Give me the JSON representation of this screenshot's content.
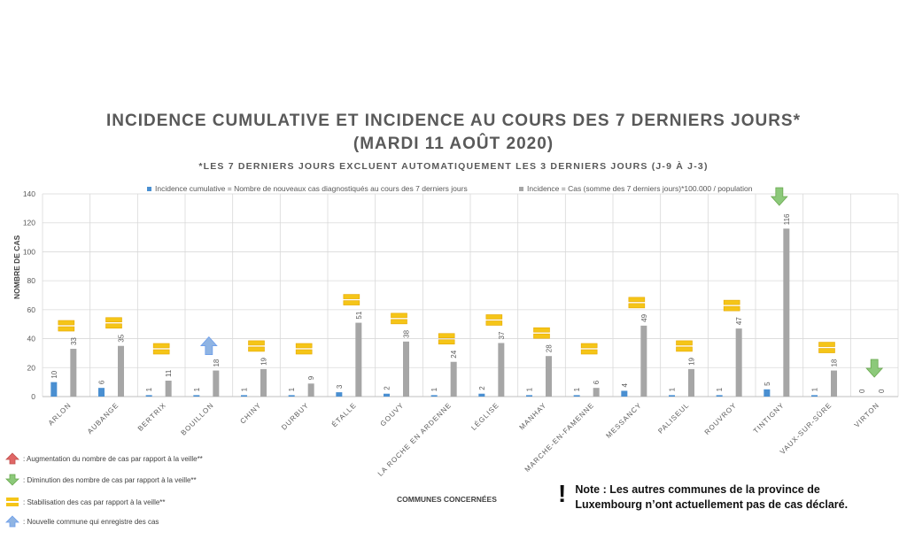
{
  "title_line1": "INCIDENCE CUMULATIVE ET INCIDENCE AU COURS DES 7 DERNIERS JOURS*",
  "title_line2": "(MARDI 11 AOÛT 2020)",
  "subtitle": "*LES 7 DERNIERS JOURS EXCLUENT AUTOMATIQUEMENT LES 3 DERNIERS JOURS (J-9 À J-3)",
  "legend": {
    "series1": "Incidence cumulative = Nombre de nouveaux cas diagnostiqués au cours des 7 derniers jours",
    "series2": "Incidence = Cas (somme des 7 derniers jours)*100.000 / population"
  },
  "axis": {
    "xlabel": "COMMUNES CONCERNÉES",
    "ylabel": "NOMBRE DE CAS"
  },
  "keys": [
    {
      "icon": "red-up-arrow-icon",
      "label": ": Augmentation du nombre de cas par rapport à la veille**"
    },
    {
      "icon": "green-down-arrow-icon",
      "label": ": Diminution des nombre de cas par rapport à la veille**"
    },
    {
      "icon": "yellow-bars-icon",
      "label": ": Stabilisation des cas par rapport à la veille**"
    },
    {
      "icon": "blue-up-arrow-icon",
      "label": ": Nouvelle commune qui enregistre des cas"
    }
  ],
  "note": "Note : Les autres communes de la province de Luxembourg n’ont actuellement pas de cas déclaré.",
  "colors": {
    "series1": "#4a8fd1",
    "series2": "#a6a6a6",
    "stable": "#f5c518",
    "down": "#8cc97a",
    "new": "#8fb4e3",
    "up": "#e06666"
  },
  "chart_data": {
    "type": "bar",
    "ylim": [
      0,
      140
    ],
    "yticks": [
      0,
      20,
      40,
      60,
      80,
      100,
      120,
      140
    ],
    "categories": [
      "ARLON",
      "AUBANGE",
      "BERTRIX",
      "BOUILLON",
      "CHINY",
      "DURBUY",
      "ÉTALLE",
      "GOUVY",
      "LA ROCHE EN ARDENNE",
      "LÉGLISE",
      "MANHAY",
      "MARCHE-EN-FAMENNE",
      "MESSANCY",
      "PALISEUL",
      "ROUVROY",
      "TINTIGNY",
      "VAUX-SUR-SÛRE",
      "VIRTON"
    ],
    "series": [
      {
        "name": "Incidence cumulative = Nombre de nouveaux cas diagnostiqués au cours des 7 derniers jours",
        "values": [
          10,
          6,
          1,
          1,
          1,
          1,
          3,
          2,
          1,
          2,
          1,
          1,
          4,
          1,
          1,
          5,
          1,
          0
        ]
      },
      {
        "name": "Incidence = Cas (somme des 7 derniers jours)*100.000 / population",
        "values": [
          33,
          35,
          11,
          18,
          19,
          9,
          51,
          38,
          24,
          37,
          28,
          6,
          49,
          19,
          47,
          116,
          18,
          0
        ]
      }
    ],
    "trend": [
      "stable",
      "stable",
      "stable",
      "new",
      "stable",
      "stable",
      "stable",
      "stable",
      "stable",
      "stable",
      "stable",
      "stable",
      "stable",
      "stable",
      "stable",
      "down",
      "stable",
      "down"
    ]
  }
}
